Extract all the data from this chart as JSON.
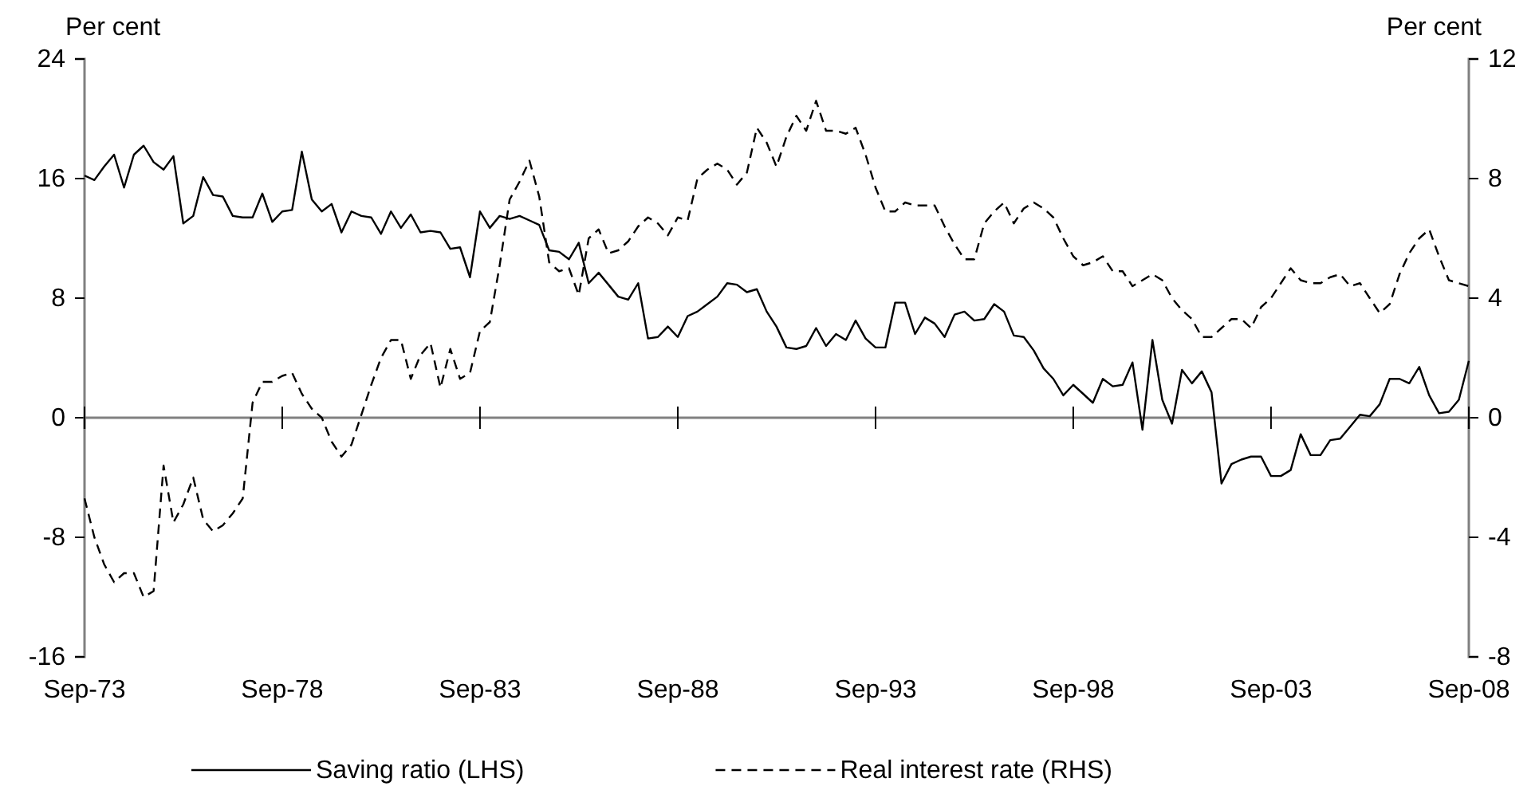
{
  "chart_data": {
    "type": "line",
    "ylabel": "Per cent",
    "y2label": "Per cent",
    "x": [
      "1973-09",
      "1973-12",
      "1974-03",
      "1974-06",
      "1974-09",
      "1974-12",
      "1975-03",
      "1975-06",
      "1975-09",
      "1975-12",
      "1976-03",
      "1976-06",
      "1976-09",
      "1976-12",
      "1977-03",
      "1977-06",
      "1977-09",
      "1977-12",
      "1978-03",
      "1978-06",
      "1978-09",
      "1978-12",
      "1979-03",
      "1979-06",
      "1979-09",
      "1979-12",
      "1980-03",
      "1980-06",
      "1980-09",
      "1980-12",
      "1981-03",
      "1981-06",
      "1981-09",
      "1981-12",
      "1982-03",
      "1982-06",
      "1982-09",
      "1982-12",
      "1983-03",
      "1983-06",
      "1983-09",
      "1983-12",
      "1984-03",
      "1984-06",
      "1984-09",
      "1984-12",
      "1985-03",
      "1985-06",
      "1985-09",
      "1985-12",
      "1986-03",
      "1986-06",
      "1986-09",
      "1986-12",
      "1987-03",
      "1987-06",
      "1987-09",
      "1987-12",
      "1988-03",
      "1988-06",
      "1988-09",
      "1988-12",
      "1989-03",
      "1989-06",
      "1989-09",
      "1989-12",
      "1990-03",
      "1990-06",
      "1990-09",
      "1990-12",
      "1991-03",
      "1991-06",
      "1991-09",
      "1991-12",
      "1992-03",
      "1992-06",
      "1992-09",
      "1992-12",
      "1993-03",
      "1993-06",
      "1993-09",
      "1993-12",
      "1994-03",
      "1994-06",
      "1994-09",
      "1994-12",
      "1995-03",
      "1995-06",
      "1995-09",
      "1995-12",
      "1996-03",
      "1996-06",
      "1996-09",
      "1996-12",
      "1997-03",
      "1997-06",
      "1997-09",
      "1997-12",
      "1998-03",
      "1998-06",
      "1998-09",
      "1998-12",
      "1999-03",
      "1999-06",
      "1999-09",
      "1999-12",
      "2000-03",
      "2000-06",
      "2000-09",
      "2000-12",
      "2001-03",
      "2001-06",
      "2001-09",
      "2001-12",
      "2002-03",
      "2002-06",
      "2002-09",
      "2002-12",
      "2003-03",
      "2003-06",
      "2003-09",
      "2003-12",
      "2004-03",
      "2004-06",
      "2004-09",
      "2004-12",
      "2005-03",
      "2005-06",
      "2005-09",
      "2005-12",
      "2006-03",
      "2006-06",
      "2006-09",
      "2006-12",
      "2007-03",
      "2007-06",
      "2007-09",
      "2007-12",
      "2008-03",
      "2008-06",
      "2008-09"
    ],
    "series": [
      {
        "name": "Saving ratio (LHS)",
        "color": "#000000",
        "line_style": "solid",
        "values": [
          16.2,
          15.9,
          16.8,
          17.6,
          15.4,
          17.6,
          18.2,
          17.1,
          16.6,
          17.5,
          13.0,
          13.5,
          16.1,
          14.9,
          14.8,
          13.5,
          13.4,
          13.4,
          15.0,
          13.1,
          13.8,
          13.9,
          17.8,
          14.6,
          13.8,
          14.3,
          12.4,
          13.8,
          13.5,
          13.4,
          12.3,
          13.8,
          12.7,
          13.6,
          12.4,
          12.5,
          12.4,
          11.3,
          11.4,
          9.4,
          13.8,
          12.7,
          13.5,
          13.3,
          13.5,
          13.2,
          12.9,
          11.2,
          11.1,
          10.6,
          11.7,
          9.0,
          9.7,
          8.9,
          8.1,
          7.9,
          9.0,
          5.3,
          5.4,
          6.1,
          5.4,
          6.8,
          7.1,
          7.6,
          8.1,
          9.0,
          8.9,
          8.4,
          8.6,
          7.1,
          6.1,
          4.7,
          4.6,
          4.8,
          6.0,
          4.8,
          5.6,
          5.2,
          6.5,
          5.3,
          4.7,
          4.7,
          7.7,
          7.7,
          5.6,
          6.7,
          6.3,
          5.4,
          6.9,
          7.1,
          6.5,
          6.6,
          7.6,
          7.1,
          5.5,
          5.4,
          4.5,
          3.3,
          2.6,
          1.5,
          2.2,
          1.6,
          1.0,
          2.6,
          2.1,
          2.2,
          3.7,
          -0.8,
          5.2,
          1.2,
          -0.4,
          3.2,
          2.3,
          3.1,
          1.7,
          -4.4,
          -3.1,
          -2.8,
          -2.6,
          -2.6,
          -3.9,
          -3.9,
          -3.5,
          -1.1,
          -2.5,
          -2.5,
          -1.5,
          -1.4,
          -0.6,
          0.2,
          0.1,
          0.9,
          2.6,
          2.6,
          2.3,
          3.4,
          1.5,
          0.3,
          0.4,
          1.2,
          3.8
        ]
      },
      {
        "name": "Real interest rate (RHS)",
        "color": "#000000",
        "line_style": "dashed",
        "axis": "y2",
        "values": [
          -2.7,
          -4.0,
          -4.9,
          -5.5,
          -5.2,
          -5.2,
          -6.0,
          -5.8,
          -1.6,
          -3.5,
          -2.9,
          -2.0,
          -3.4,
          -3.8,
          -3.6,
          -3.2,
          -2.7,
          0.5,
          1.2,
          1.2,
          1.4,
          1.5,
          0.8,
          0.3,
          0.0,
          -0.8,
          -1.3,
          -0.9,
          0.1,
          1.1,
          2.0,
          2.6,
          2.6,
          1.3,
          2.1,
          2.5,
          1.0,
          2.3,
          1.3,
          1.5,
          2.9,
          3.2,
          5.1,
          7.3,
          7.9,
          8.6,
          7.4,
          5.2,
          4.9,
          5.0,
          4.1,
          6.0,
          6.3,
          5.5,
          5.6,
          5.9,
          6.4,
          6.7,
          6.5,
          6.1,
          6.7,
          6.6,
          8.0,
          8.3,
          8.5,
          8.3,
          7.8,
          8.2,
          9.7,
          9.2,
          8.4,
          9.4,
          10.1,
          9.6,
          10.6,
          9.6,
          9.6,
          9.5,
          9.7,
          8.8,
          7.7,
          6.9,
          6.9,
          7.2,
          7.1,
          7.1,
          7.1,
          6.4,
          5.8,
          5.3,
          5.3,
          6.5,
          6.9,
          7.2,
          6.5,
          7.0,
          7.2,
          7.0,
          6.7,
          6.0,
          5.4,
          5.1,
          5.2,
          5.4,
          4.9,
          4.9,
          4.4,
          4.6,
          4.8,
          4.6,
          4.0,
          3.6,
          3.3,
          2.7,
          2.7,
          3.0,
          3.3,
          3.3,
          3.0,
          3.7,
          4.0,
          4.5,
          5.0,
          4.6,
          4.5,
          4.5,
          4.7,
          4.8,
          4.4,
          4.5,
          4.0,
          3.5,
          3.8,
          4.8,
          5.5,
          6.0,
          6.3,
          5.4,
          4.6,
          4.5,
          4.4
        ]
      }
    ],
    "xlim": [
      "1973-09",
      "2008-09"
    ],
    "xticks": [
      {
        "value": "1973-09",
        "label": "Sep-73"
      },
      {
        "value": "1978-09",
        "label": "Sep-78"
      },
      {
        "value": "1983-09",
        "label": "Sep-83"
      },
      {
        "value": "1988-09",
        "label": "Sep-88"
      },
      {
        "value": "1993-09",
        "label": "Sep-93"
      },
      {
        "value": "1998-09",
        "label": "Sep-98"
      },
      {
        "value": "2003-09",
        "label": "Sep-03"
      },
      {
        "value": "2008-09",
        "label": "Sep-08"
      }
    ],
    "ylim": [
      -16,
      24
    ],
    "yticks": [
      -16,
      -8,
      0,
      8,
      16,
      24
    ],
    "y2lim": [
      -8,
      12
    ],
    "y2ticks": [
      -8,
      -4,
      0,
      4,
      8,
      12
    ],
    "grid": false,
    "legend": "bottom"
  }
}
